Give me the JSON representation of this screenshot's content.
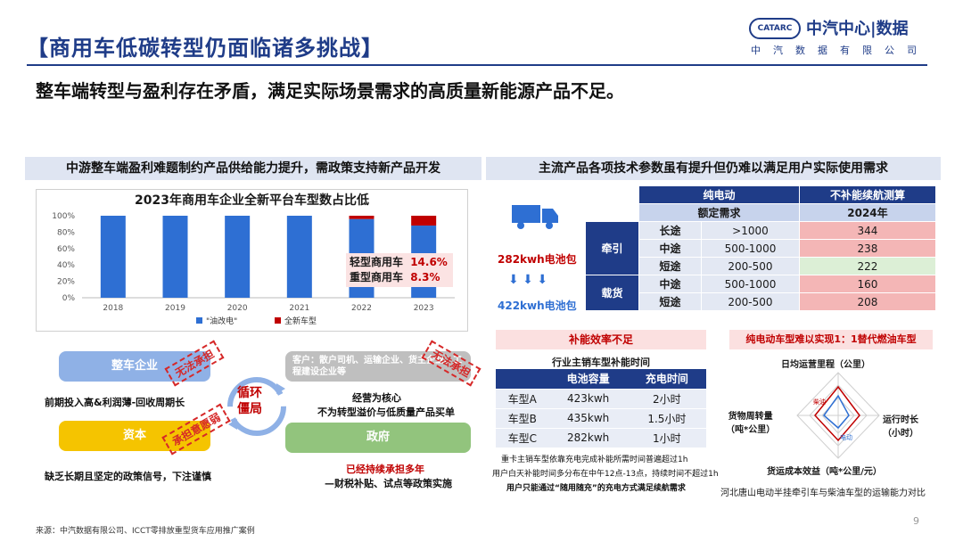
{
  "header": {
    "title": "【商用车低碳转型仍面临诸多挑战】",
    "subtitle": "整车端转型与盈利存在矛盾，满足实际场景需求的高质量新能源产品不足。",
    "logo_badge": "CATARC",
    "logo_text": "中汽中心|数据",
    "logo_sub": "中汽数据有限公司"
  },
  "left_panel": {
    "heading": "中游整车端盈利难题制约产品供给能力提升，需政策支持新产品开发",
    "legend_annot": {
      "light_label": "轻型商用车",
      "light_value": "14.6%",
      "heavy_label": "重型商用车",
      "heavy_value": "8.3%"
    },
    "cycle": {
      "center": "循环\n僵局",
      "vehicle_box": "整车企业",
      "vehicle_caption": "前期投入高&利润薄-回收周期长",
      "capital_box": "资本",
      "capital_caption": "缺乏长期且坚定的政策信号，下注谨慎",
      "customer_box": "客户：散户司机、运输企业、货主企业、工程建设企业等",
      "customer_caption1": "经营为核心",
      "customer_caption2": "不为转型溢价与低质量产品买单",
      "gov_box": "政府",
      "gov_caption1": "已经持续承担多年",
      "gov_caption2": "—财税补贴、试点等政策实施",
      "stamp1": "无法承担",
      "stamp2": "无法承担",
      "stamp3": "承担意愿弱"
    }
  },
  "chart_data": {
    "type": "bar",
    "title": "2023年商用车企业全新平台车型数占比低",
    "categories": [
      "2018",
      "2019",
      "2020",
      "2021",
      "2022",
      "2023"
    ],
    "ylim": [
      0,
      100
    ],
    "yticks": [
      "0%",
      "20%",
      "40%",
      "60%",
      "80%",
      "100%"
    ],
    "series": [
      {
        "name": "\"油改电\"",
        "color": "#2e6fd3",
        "values": [
          100,
          100,
          100,
          100,
          96,
          88
        ]
      },
      {
        "name": "全新车型",
        "color": "#c00000",
        "values": [
          0,
          0,
          0,
          0,
          4,
          12
        ]
      }
    ],
    "legend": "bottom"
  },
  "right_panel": {
    "heading": "主流产品各项技术参数虽有提升但仍难以满足用户实际使用需求",
    "battery1": "282kwh电池包",
    "battery2": "422kwh电池包",
    "spec_table": {
      "h1": "纯电动",
      "h2": "不补能续航测算",
      "h3": "额定需求",
      "h4": "2024年",
      "groups": [
        {
          "name": "牵引",
          "rows": [
            {
              "type": "长途",
              "need": ">1000",
              "val": "344",
              "tone": "red"
            },
            {
              "type": "中途",
              "need": "500-1000",
              "val": "238",
              "tone": "red"
            },
            {
              "type": "短途",
              "need": "200-500",
              "val": "222",
              "tone": "green"
            }
          ]
        },
        {
          "name": "载货",
          "rows": [
            {
              "type": "中途",
              "need": "500-1000",
              "val": "160",
              "tone": "red"
            },
            {
              "type": "短途",
              "need": "200-500",
              "val": "208",
              "tone": "red"
            }
          ]
        }
      ]
    },
    "charge": {
      "tag": "补能效率不足",
      "title": "行业主销车型补能时间",
      "headers": [
        "",
        "电池容量",
        "充电时间"
      ],
      "rows": [
        [
          "车型A",
          "423kwh",
          "2小时"
        ],
        [
          "车型B",
          "435kwh",
          "1.5小时"
        ],
        [
          "车型C",
          "282kwh",
          "1小时"
        ]
      ],
      "note1": "重卡主销车型依靠充电完成补能所需时间普遍超过1h",
      "note2": "用户白天补能时间多分布在中午12点-13点，持续时间不超过1h",
      "note3": "用户只能通过“随用随充”的充电方式满足续航需求"
    },
    "radar": {
      "tag": "纯电动车型难以实现1：1替代燃油车型",
      "axis_top": "日均运营里程（公里）",
      "axis_right": "运行时长\n（小时）",
      "axis_bottom": "货运成本效益（吨*公里/元）",
      "axis_left": "货物周转量\n（吨*公里）",
      "series1": "柴油",
      "series2": "电动",
      "caption": "河北唐山电动半挂牵引车与柴油车型的运输能力对比"
    }
  },
  "footer": {
    "source": "来源：中汽数据有限公司、ICCT零排放重型货车应用推广案例",
    "page": "9"
  }
}
